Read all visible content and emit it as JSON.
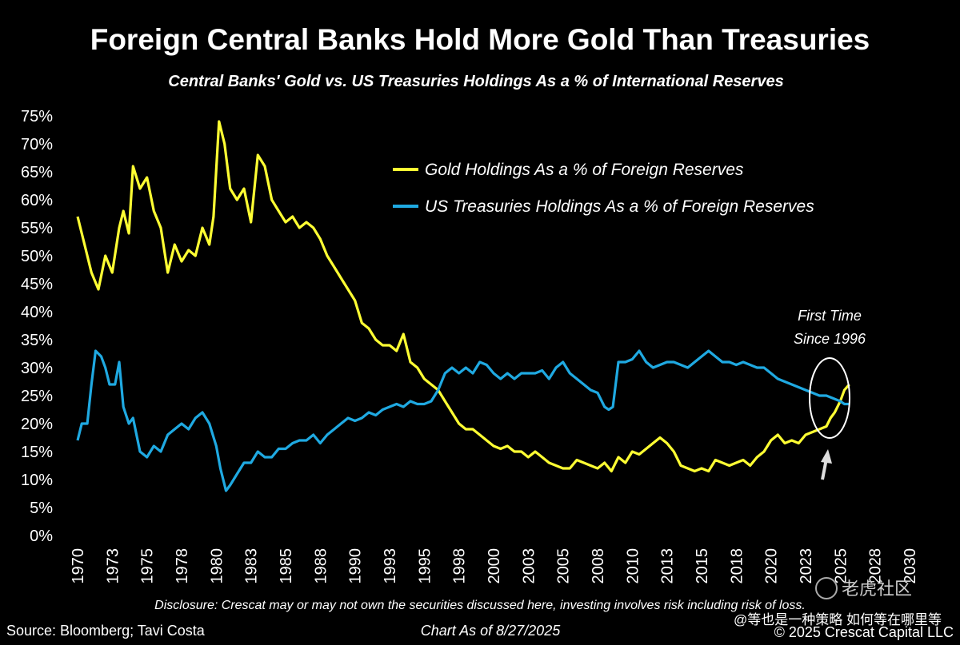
{
  "colors": {
    "background": "#000000",
    "gold": "#ffff33",
    "treasuries": "#1fa9e1",
    "text": "#ffffff"
  },
  "footer": {
    "disclosure": "Disclosure: Crescat may or may not own the securities discussed here, investing involves risk including risk of loss.",
    "source": "Source: Bloomberg; Tavi Costa",
    "chart_as_of": "Chart As of 8/27/2025",
    "copyright": "© 2025 Crescat Capital LLC"
  },
  "watermark": {
    "site": "老虎社区",
    "user": "@等也是一种策略 如何等在哪里等"
  },
  "chart_data": {
    "type": "line",
    "title": "Foreign Central Banks Hold More Gold Than Treasuries",
    "subtitle": "Central Banks' Gold vs. US Treasuries Holdings As a % of International Reserves",
    "xlim": [
      1970,
      2030
    ],
    "ylim": [
      0,
      75
    ],
    "y_ticks": [
      0,
      5,
      10,
      15,
      20,
      25,
      30,
      35,
      40,
      45,
      50,
      55,
      60,
      65,
      70,
      75
    ],
    "y_tick_labels": [
      "0%",
      "5%",
      "10%",
      "15%",
      "20%",
      "25%",
      "30%",
      "35%",
      "40%",
      "45%",
      "50%",
      "55%",
      "60%",
      "65%",
      "70%",
      "75%"
    ],
    "x_tick_labels": [
      "1970",
      "1973",
      "1975",
      "1978",
      "1980",
      "1983",
      "1985",
      "1988",
      "1990",
      "1993",
      "1995",
      "1998",
      "2000",
      "2003",
      "2005",
      "2008",
      "2010",
      "2013",
      "2015",
      "2018",
      "2020",
      "2023",
      "2025",
      "2028",
      "2030"
    ],
    "grid": false,
    "legend_position": "top-right",
    "series": [
      {
        "name": "Gold Holdings As a % of Foreign Reserves",
        "color": "#ffff33",
        "x": [
          1970.0,
          1970.5,
          1971.0,
          1971.5,
          1972.0,
          1972.5,
          1973.0,
          1973.3,
          1973.7,
          1974.0,
          1974.5,
          1975.0,
          1975.5,
          1976.0,
          1976.5,
          1977.0,
          1977.5,
          1978.0,
          1978.5,
          1979.0,
          1979.5,
          1979.8,
          1980.2,
          1980.6,
          1981.0,
          1981.5,
          1982.0,
          1982.5,
          1983.0,
          1983.5,
          1984.0,
          1984.5,
          1985.0,
          1985.5,
          1986.0,
          1986.5,
          1987.0,
          1987.5,
          1988.0,
          1988.5,
          1989.0,
          1989.5,
          1990.0,
          1990.5,
          1991.0,
          1991.5,
          1992.0,
          1992.5,
          1993.0,
          1993.5,
          1994.0,
          1994.5,
          1995.0,
          1995.5,
          1996.0,
          1996.5,
          1997.0,
          1997.5,
          1998.0,
          1998.5,
          1999.0,
          1999.5,
          2000.0,
          2000.5,
          2001.0,
          2001.5,
          2002.0,
          2002.5,
          2003.0,
          2003.5,
          2004.0,
          2004.5,
          2005.0,
          2005.5,
          2006.0,
          2006.5,
          2007.0,
          2007.5,
          2008.0,
          2008.5,
          2009.0,
          2009.5,
          2010.0,
          2010.5,
          2011.0,
          2011.5,
          2012.0,
          2012.5,
          2013.0,
          2013.5,
          2014.0,
          2014.5,
          2015.0,
          2015.5,
          2016.0,
          2016.5,
          2017.0,
          2017.5,
          2018.0,
          2018.5,
          2019.0,
          2019.5,
          2020.0,
          2020.5,
          2021.0,
          2021.5,
          2022.0,
          2022.5,
          2023.0,
          2023.5,
          2024.0,
          2024.3,
          2024.6,
          2025.0,
          2025.3,
          2025.65
        ],
        "values": [
          57,
          52,
          47,
          44,
          50,
          47,
          55,
          58,
          54,
          66,
          62,
          64,
          58,
          55,
          47,
          52,
          49,
          51,
          50,
          55,
          52,
          57,
          74,
          70,
          62,
          60,
          62,
          56,
          68,
          66,
          60,
          58,
          56,
          57,
          55,
          56,
          55,
          53,
          50,
          48,
          46,
          44,
          42,
          38,
          37,
          35,
          34,
          34,
          33,
          36,
          31,
          30,
          28,
          27,
          26,
          24,
          22,
          20,
          19,
          19,
          18,
          17,
          16,
          15.5,
          16,
          15,
          15,
          14,
          15,
          14,
          13,
          12.5,
          12,
          12,
          13.5,
          13,
          12.5,
          12,
          13,
          11.5,
          14,
          13,
          15,
          14.5,
          15.5,
          16.5,
          17.5,
          16.5,
          15,
          12.5,
          12,
          11.5,
          12,
          11.5,
          13.5,
          13,
          12.5,
          13,
          13.5,
          12.5,
          14,
          15,
          17,
          18,
          16.5,
          17,
          16.5,
          18,
          18.5,
          19,
          19.5,
          21,
          22,
          24,
          26,
          27
        ]
      },
      {
        "name": "US Treasuries Holdings As a % of Foreign Reserves",
        "color": "#1fa9e1",
        "x": [
          1970.0,
          1970.3,
          1970.7,
          1971.0,
          1971.3,
          1971.7,
          1972.0,
          1972.3,
          1972.7,
          1973.0,
          1973.3,
          1973.7,
          1974.0,
          1974.5,
          1975.0,
          1975.5,
          1976.0,
          1976.5,
          1977.0,
          1977.5,
          1978.0,
          1978.5,
          1979.0,
          1979.5,
          1980.0,
          1980.3,
          1980.7,
          1981.0,
          1981.5,
          1982.0,
          1982.5,
          1983.0,
          1983.5,
          1984.0,
          1984.5,
          1985.0,
          1985.5,
          1986.0,
          1986.5,
          1987.0,
          1987.5,
          1988.0,
          1988.5,
          1989.0,
          1989.5,
          1990.0,
          1990.5,
          1991.0,
          1991.5,
          1992.0,
          1992.5,
          1993.0,
          1993.5,
          1994.0,
          1994.5,
          1995.0,
          1995.5,
          1996.0,
          1996.5,
          1997.0,
          1997.5,
          1998.0,
          1998.5,
          1999.0,
          1999.5,
          2000.0,
          2000.5,
          2001.0,
          2001.5,
          2002.0,
          2002.5,
          2003.0,
          2003.5,
          2004.0,
          2004.5,
          2005.0,
          2005.5,
          2006.0,
          2006.5,
          2007.0,
          2007.5,
          2008.0,
          2008.3,
          2008.6,
          2009.0,
          2009.5,
          2010.0,
          2010.5,
          2011.0,
          2011.5,
          2012.0,
          2012.5,
          2013.0,
          2013.5,
          2014.0,
          2014.5,
          2015.0,
          2015.5,
          2016.0,
          2016.5,
          2017.0,
          2017.5,
          2018.0,
          2018.5,
          2019.0,
          2019.5,
          2020.0,
          2020.5,
          2021.0,
          2021.5,
          2022.0,
          2022.5,
          2023.0,
          2023.5,
          2024.0,
          2024.5,
          2025.0,
          2025.3,
          2025.65
        ],
        "values": [
          17,
          20,
          20,
          27,
          33,
          32,
          30,
          27,
          27,
          31,
          23,
          20,
          21,
          15,
          14,
          16,
          15,
          18,
          19,
          20,
          19,
          21,
          22,
          20,
          16,
          12,
          8,
          9,
          11,
          13,
          13,
          15,
          14,
          14,
          15.5,
          15.5,
          16.5,
          17,
          17,
          18,
          16.5,
          18,
          19,
          20,
          21,
          20.5,
          21,
          22,
          21.5,
          22.5,
          23,
          23.5,
          23,
          24,
          23.5,
          23.5,
          24,
          26,
          29,
          30,
          29,
          30,
          29,
          31,
          30.5,
          29,
          28,
          29,
          28,
          29,
          29,
          29,
          29.5,
          28,
          30,
          31,
          29,
          28,
          27,
          26,
          25.5,
          23,
          22.5,
          23,
          31,
          31,
          31.5,
          33,
          31,
          30,
          30.5,
          31,
          31,
          30.5,
          30,
          31,
          32,
          33,
          32,
          31,
          31,
          30.5,
          31,
          30.5,
          30,
          30,
          29,
          28,
          27.5,
          27,
          26.5,
          26,
          25.5,
          25,
          25,
          24.5,
          24,
          23.5,
          23.5
        ]
      }
    ],
    "annotations": {
      "callout_line1": "First Time",
      "callout_line2": "Since 1996"
    }
  }
}
